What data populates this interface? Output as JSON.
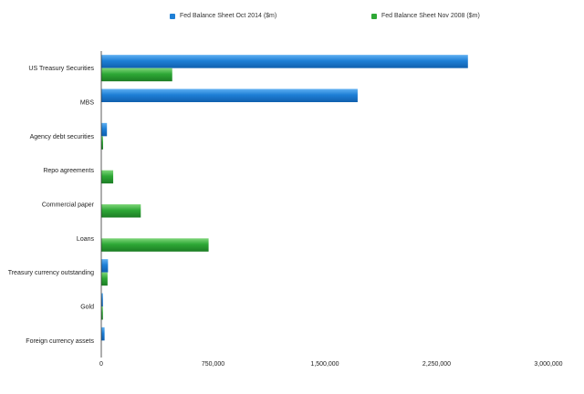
{
  "chart_data": {
    "type": "bar",
    "orientation": "horizontal",
    "categories": [
      "US Treasury Securities",
      "MBS",
      "Agency debt securities",
      "Repo agreements",
      "Commercial paper",
      "Loans",
      "Treasury currency outstanding",
      "Gold",
      "Foreign currency assets"
    ],
    "series": [
      {
        "name": "Fed Balance Sheet Oct 2014 ($m)",
        "color": "#1e7fd6",
        "values": [
          2460000,
          1720000,
          38000,
          0,
          0,
          0,
          45000,
          11000,
          22000
        ]
      },
      {
        "name": "Fed Balance Sheet Nov 2008 ($m)",
        "color": "#2ea836",
        "values": [
          476000,
          0,
          12000,
          80000,
          265000,
          720000,
          42000,
          11000,
          0
        ]
      }
    ],
    "xlim": [
      0,
      3000000
    ],
    "xticks": [
      0,
      750000,
      1500000,
      2250000,
      3000000
    ],
    "xtick_labels": [
      "0",
      "750,000",
      "1,500,000",
      "2,250,000",
      "3,000,000"
    ],
    "legend_position": "top",
    "grid": false
  }
}
